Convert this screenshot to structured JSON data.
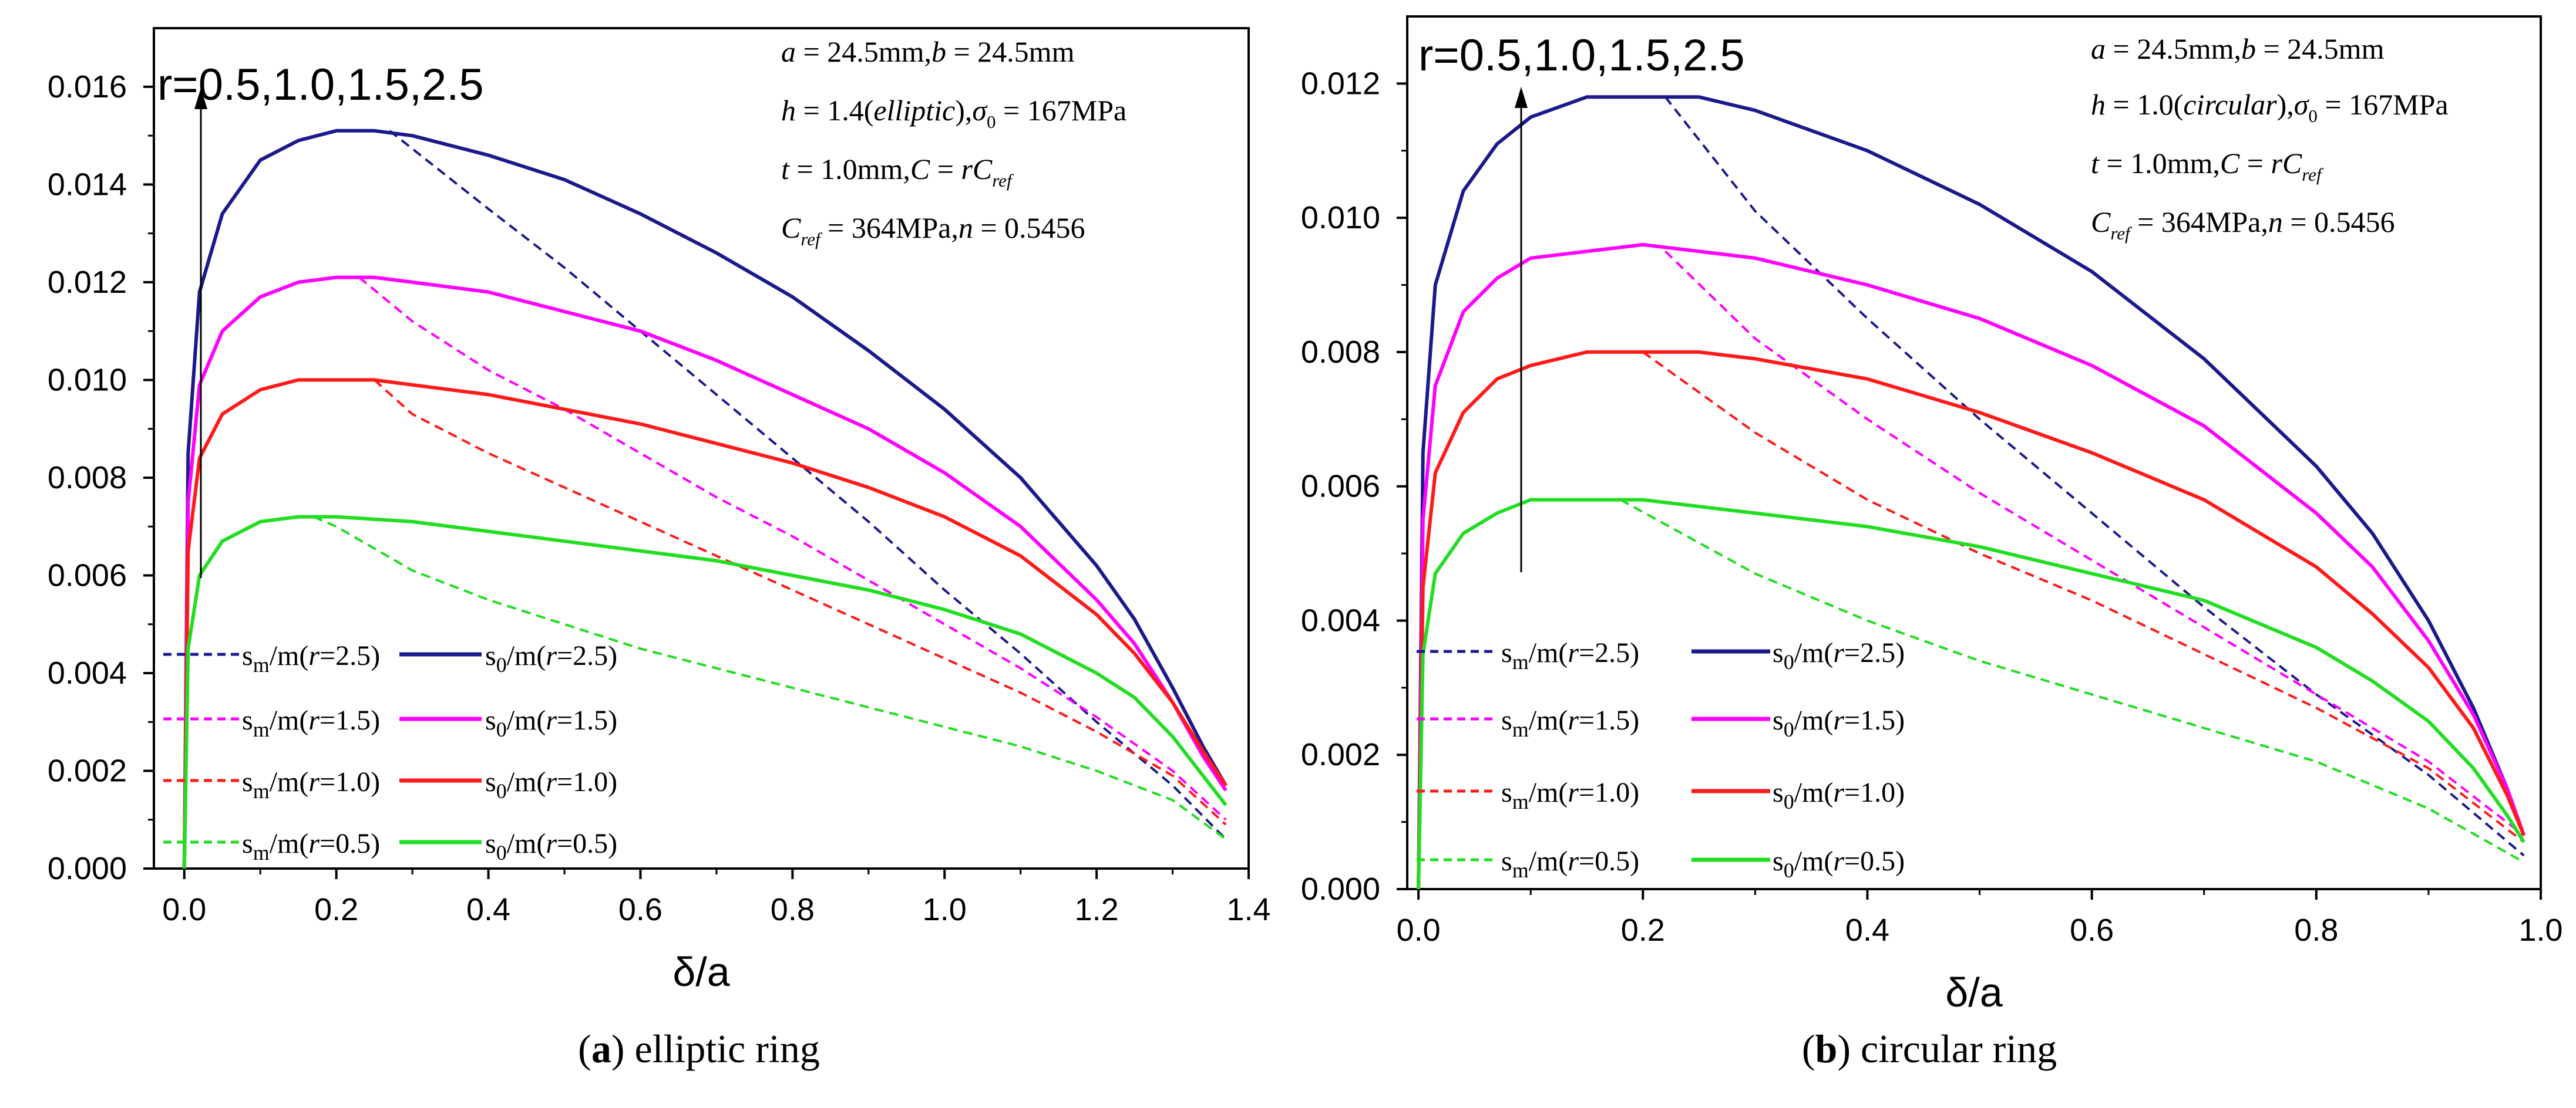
{
  "colors": {
    "r25": "#1a1a8c",
    "r15": "#ff00ff",
    "r10": "#ff1a1a",
    "r05": "#22dd22",
    "axis": "#000000"
  },
  "chart_data": [
    {
      "type": "line",
      "caption_letter": "a",
      "caption_text": " elliptic ring",
      "xlabel": "δ/a",
      "ylabel": "",
      "xlim": [
        -0.04,
        1.4
      ],
      "ylim": [
        0,
        0.0172
      ],
      "xticks": [
        0.0,
        0.2,
        0.4,
        0.6,
        0.8,
        1.0,
        1.2,
        1.4
      ],
      "xtick_labels": [
        "0.0",
        "0.2",
        "0.4",
        "0.6",
        "0.8",
        "1.0",
        "1.2",
        "1.4"
      ],
      "yticks": [
        0,
        0.002,
        0.004,
        0.006,
        0.008,
        0.01,
        0.012,
        0.014,
        0.016
      ],
      "ytick_labels": [
        "0.000",
        "0.002",
        "0.004",
        "0.006",
        "0.008",
        "0.010",
        "0.012",
        "0.014",
        "0.016"
      ],
      "annotation_r": "r=0.5,1.0,1.5,2.5",
      "params": [
        "a = 24.5mm, b = 24.5mm",
        "h = 1.4(elliptic), σ₀ = 167MPa",
        "t = 1.0mm, C = rC_ref",
        "C_ref = 364MPa, n = 0.5456"
      ],
      "legend": [
        {
          "dashed": "sm/m(r=2.5)",
          "solid": "s0/m(r=2.5)",
          "color_key": "r25"
        },
        {
          "dashed": "sm/m(r=1.5)",
          "solid": "s0/m(r=1.5)",
          "color_key": "r15"
        },
        {
          "dashed": "sm/m(r=1.0)",
          "solid": "s0/m(r=1.0)",
          "color_key": "r10"
        },
        {
          "dashed": "sm/m(r=0.5)",
          "solid": "s0/m(r=0.5)",
          "color_key": "r05"
        }
      ],
      "series": [
        {
          "name": "s0/m(r=2.5)",
          "style": "solid",
          "color_key": "r25",
          "x": [
            0,
            0.005,
            0.02,
            0.05,
            0.1,
            0.15,
            0.2,
            0.25,
            0.3,
            0.4,
            0.5,
            0.6,
            0.7,
            0.8,
            0.9,
            1.0,
            1.1,
            1.2,
            1.25,
            1.3,
            1.34,
            1.37
          ],
          "y": [
            0,
            0.0085,
            0.0118,
            0.0134,
            0.0145,
            0.0149,
            0.0151,
            0.0151,
            0.015,
            0.0146,
            0.0141,
            0.0134,
            0.0126,
            0.0117,
            0.0106,
            0.0094,
            0.008,
            0.0062,
            0.0051,
            0.0037,
            0.0025,
            0.0017
          ]
        },
        {
          "name": "sm/m(r=2.5)",
          "style": "dashed",
          "color_key": "r25",
          "x": [
            0.27,
            0.4,
            0.5,
            0.6,
            0.7,
            0.8,
            0.9,
            1.0,
            1.1,
            1.2,
            1.3,
            1.37
          ],
          "y": [
            0.0151,
            0.0135,
            0.0123,
            0.011,
            0.0097,
            0.0084,
            0.0071,
            0.0057,
            0.0044,
            0.003,
            0.0017,
            0.0006
          ]
        },
        {
          "name": "s0/m(r=1.5)",
          "style": "solid",
          "color_key": "r15",
          "x": [
            0,
            0.005,
            0.02,
            0.05,
            0.1,
            0.15,
            0.2,
            0.25,
            0.3,
            0.4,
            0.5,
            0.6,
            0.7,
            0.8,
            0.9,
            1.0,
            1.1,
            1.2,
            1.25,
            1.3,
            1.34,
            1.37
          ],
          "y": [
            0,
            0.0075,
            0.0099,
            0.011,
            0.0117,
            0.012,
            0.0121,
            0.0121,
            0.012,
            0.0118,
            0.0114,
            0.011,
            0.0104,
            0.0097,
            0.009,
            0.0081,
            0.007,
            0.0055,
            0.0046,
            0.0034,
            0.0023,
            0.0016
          ]
        },
        {
          "name": "sm/m(r=1.5)",
          "style": "dashed",
          "color_key": "r15",
          "x": [
            0.23,
            0.3,
            0.4,
            0.5,
            0.6,
            0.7,
            0.8,
            0.9,
            1.0,
            1.1,
            1.2,
            1.3,
            1.37
          ],
          "y": [
            0.0121,
            0.0112,
            0.0102,
            0.0094,
            0.0085,
            0.0076,
            0.0068,
            0.0059,
            0.005,
            0.0041,
            0.0031,
            0.002,
            0.001
          ]
        },
        {
          "name": "s0/m(r=1.0)",
          "style": "solid",
          "color_key": "r10",
          "x": [
            0,
            0.005,
            0.02,
            0.05,
            0.1,
            0.15,
            0.2,
            0.25,
            0.3,
            0.4,
            0.5,
            0.6,
            0.7,
            0.8,
            0.9,
            1.0,
            1.1,
            1.2,
            1.25,
            1.3,
            1.34,
            1.37
          ],
          "y": [
            0,
            0.0065,
            0.0084,
            0.0093,
            0.0098,
            0.01,
            0.01,
            0.01,
            0.0099,
            0.0097,
            0.0094,
            0.0091,
            0.0087,
            0.0083,
            0.0078,
            0.0072,
            0.0064,
            0.0052,
            0.0044,
            0.0034,
            0.0024,
            0.0017
          ]
        },
        {
          "name": "sm/m(r=1.0)",
          "style": "dashed",
          "color_key": "r10",
          "x": [
            0.25,
            0.3,
            0.4,
            0.5,
            0.6,
            0.7,
            0.8,
            0.9,
            1.0,
            1.1,
            1.2,
            1.3,
            1.37
          ],
          "y": [
            0.01,
            0.0093,
            0.0085,
            0.0078,
            0.0071,
            0.0064,
            0.0057,
            0.005,
            0.0043,
            0.0036,
            0.0028,
            0.0019,
            0.0009
          ]
        },
        {
          "name": "s0/m(r=0.5)",
          "style": "solid",
          "color_key": "r05",
          "x": [
            0,
            0.005,
            0.02,
            0.05,
            0.1,
            0.15,
            0.2,
            0.3,
            0.4,
            0.5,
            0.6,
            0.7,
            0.8,
            0.9,
            1.0,
            1.1,
            1.2,
            1.25,
            1.3,
            1.34,
            1.37
          ],
          "y": [
            0,
            0.0045,
            0.006,
            0.0067,
            0.0071,
            0.0072,
            0.0072,
            0.0071,
            0.0069,
            0.0067,
            0.0065,
            0.0063,
            0.006,
            0.0057,
            0.0053,
            0.0048,
            0.004,
            0.0035,
            0.0027,
            0.0019,
            0.0013
          ]
        },
        {
          "name": "sm/m(r=0.5)",
          "style": "dashed",
          "color_key": "r05",
          "x": [
            0.17,
            0.2,
            0.3,
            0.4,
            0.5,
            0.6,
            0.7,
            0.8,
            0.9,
            1.0,
            1.1,
            1.2,
            1.3,
            1.37
          ],
          "y": [
            0.0072,
            0.007,
            0.0061,
            0.0055,
            0.005,
            0.0045,
            0.0041,
            0.0037,
            0.0033,
            0.0029,
            0.0025,
            0.002,
            0.0014,
            0.0006
          ]
        }
      ]
    },
    {
      "type": "line",
      "caption_letter": "b",
      "caption_text": " circular ring",
      "xlabel": "δ/a",
      "ylabel": "",
      "xlim": [
        -0.01,
        1.0
      ],
      "ylim": [
        0,
        0.013
      ],
      "xticks": [
        0.0,
        0.2,
        0.4,
        0.6,
        0.8,
        1.0
      ],
      "xtick_labels": [
        "0.0",
        "0.2",
        "0.4",
        "0.6",
        "0.8",
        "1.0"
      ],
      "yticks": [
        0,
        0.002,
        0.004,
        0.006,
        0.008,
        0.01,
        0.012
      ],
      "ytick_labels": [
        "0.000",
        "0.002",
        "0.004",
        "0.006",
        "0.008",
        "0.010",
        "0.012"
      ],
      "annotation_r": "r=0.5,1.0,1.5,2.5",
      "params": [
        "a = 24.5mm, b = 24.5mm",
        "h = 1.0(circular), σ₀ = 167MPa",
        "t = 1.0mm, C = rC_ref",
        "C_ref = 364MPa, n = 0.5456"
      ],
      "legend": [
        {
          "dashed": "sm/m(r=2.5)",
          "solid": "s0/m(r=2.5)",
          "color_key": "r25"
        },
        {
          "dashed": "sm/m(r=1.5)",
          "solid": "s0/m(r=1.5)",
          "color_key": "r15"
        },
        {
          "dashed": "sm/m(r=1.0)",
          "solid": "s0/m(r=1.0)",
          "color_key": "r10"
        },
        {
          "dashed": "sm/m(r=0.5)",
          "solid": "s0/m(r=0.5)",
          "color_key": "r05"
        }
      ],
      "series": [
        {
          "name": "s0/m(r=2.5)",
          "style": "solid",
          "color_key": "r25",
          "x": [
            0,
            0.004,
            0.015,
            0.04,
            0.07,
            0.1,
            0.15,
            0.2,
            0.25,
            0.3,
            0.4,
            0.5,
            0.6,
            0.7,
            0.8,
            0.85,
            0.9,
            0.94,
            0.97,
            0.985
          ],
          "y": [
            0,
            0.0065,
            0.009,
            0.0104,
            0.0111,
            0.0115,
            0.0118,
            0.0118,
            0.0118,
            0.0116,
            0.011,
            0.0102,
            0.0092,
            0.0079,
            0.0063,
            0.0053,
            0.004,
            0.0027,
            0.0015,
            0.0008
          ]
        },
        {
          "name": "sm/m(r=2.5)",
          "style": "dashed",
          "color_key": "r25",
          "x": [
            0.22,
            0.3,
            0.4,
            0.5,
            0.6,
            0.7,
            0.8,
            0.9,
            0.985
          ],
          "y": [
            0.0118,
            0.0101,
            0.0085,
            0.007,
            0.0056,
            0.0042,
            0.0029,
            0.0017,
            0.0005
          ]
        },
        {
          "name": "s0/m(r=1.5)",
          "style": "solid",
          "color_key": "r15",
          "x": [
            0,
            0.004,
            0.015,
            0.04,
            0.07,
            0.1,
            0.15,
            0.2,
            0.25,
            0.3,
            0.4,
            0.5,
            0.6,
            0.7,
            0.8,
            0.85,
            0.9,
            0.94,
            0.97,
            0.985
          ],
          "y": [
            0,
            0.0055,
            0.0075,
            0.0086,
            0.0091,
            0.0094,
            0.0095,
            0.0096,
            0.0095,
            0.0094,
            0.009,
            0.0085,
            0.0078,
            0.0069,
            0.0056,
            0.0048,
            0.0037,
            0.0026,
            0.0015,
            0.0008
          ]
        },
        {
          "name": "sm/m(r=1.5)",
          "style": "dashed",
          "color_key": "r15",
          "x": [
            0.22,
            0.3,
            0.4,
            0.5,
            0.6,
            0.7,
            0.8,
            0.9,
            0.985
          ],
          "y": [
            0.0095,
            0.0082,
            0.007,
            0.0059,
            0.0049,
            0.0039,
            0.0029,
            0.0019,
            0.0008
          ]
        },
        {
          "name": "s0/m(r=1.0)",
          "style": "solid",
          "color_key": "r10",
          "x": [
            0,
            0.004,
            0.015,
            0.04,
            0.07,
            0.1,
            0.15,
            0.2,
            0.25,
            0.3,
            0.4,
            0.5,
            0.6,
            0.7,
            0.8,
            0.85,
            0.9,
            0.94,
            0.97,
            0.985
          ],
          "y": [
            0,
            0.0045,
            0.0062,
            0.0071,
            0.0076,
            0.0078,
            0.008,
            0.008,
            0.008,
            0.0079,
            0.0076,
            0.0071,
            0.0065,
            0.0058,
            0.0048,
            0.0041,
            0.0033,
            0.0024,
            0.0014,
            0.0008
          ]
        },
        {
          "name": "sm/m(r=1.0)",
          "style": "dashed",
          "color_key": "r10",
          "x": [
            0.2,
            0.3,
            0.4,
            0.5,
            0.6,
            0.7,
            0.8,
            0.9,
            0.985
          ],
          "y": [
            0.008,
            0.0068,
            0.0058,
            0.005,
            0.0043,
            0.0035,
            0.0027,
            0.0018,
            0.0007
          ]
        },
        {
          "name": "s0/m(r=0.5)",
          "style": "solid",
          "color_key": "r05",
          "x": [
            0,
            0.004,
            0.015,
            0.04,
            0.07,
            0.1,
            0.15,
            0.2,
            0.3,
            0.4,
            0.5,
            0.6,
            0.7,
            0.8,
            0.85,
            0.9,
            0.94,
            0.97,
            0.985
          ],
          "y": [
            0,
            0.0035,
            0.0047,
            0.0053,
            0.0056,
            0.0058,
            0.0058,
            0.0058,
            0.0056,
            0.0054,
            0.0051,
            0.0047,
            0.0043,
            0.0036,
            0.0031,
            0.0025,
            0.0018,
            0.0011,
            0.0007
          ]
        },
        {
          "name": "sm/m(r=0.5)",
          "style": "dashed",
          "color_key": "r05",
          "x": [
            0.18,
            0.3,
            0.4,
            0.5,
            0.6,
            0.7,
            0.8,
            0.9,
            0.985
          ],
          "y": [
            0.0058,
            0.0047,
            0.004,
            0.0034,
            0.0029,
            0.0024,
            0.0019,
            0.0012,
            0.0004
          ]
        }
      ]
    }
  ]
}
